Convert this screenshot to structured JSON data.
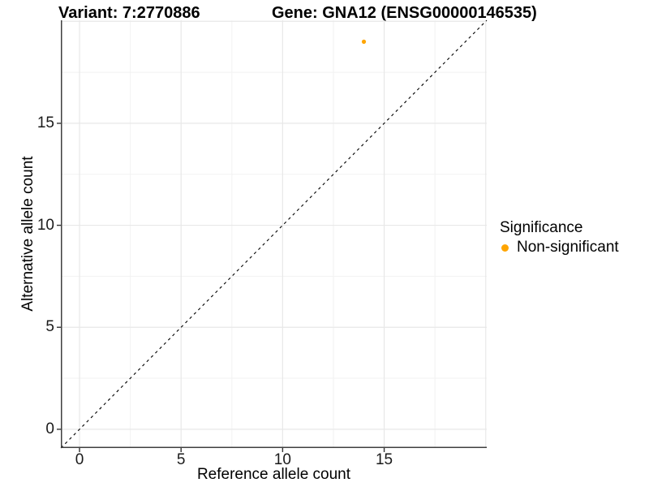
{
  "chart_data": {
    "type": "scatter",
    "title_left": "Variant: 7:2770886",
    "title_right": "Gene: GNA12 (ENSG00000146535)",
    "xlabel": "Reference allele count",
    "ylabel": "Alternative allele count",
    "xlim": [
      -0.92,
      20.05
    ],
    "ylim": [
      -0.92,
      20.05
    ],
    "x_ticks": [
      0,
      5,
      10,
      15
    ],
    "y_ticks": [
      0,
      5,
      10,
      15
    ],
    "grid": {
      "major": [
        0,
        5,
        10,
        15,
        20
      ],
      "minor": [
        2.5,
        7.5,
        12.5,
        17.5
      ]
    },
    "identity_line": {
      "style": "dashed",
      "slope": 1,
      "intercept": 0
    },
    "series": [
      {
        "name": "Non-significant",
        "color": "#FFA500",
        "points": [
          {
            "x": 14,
            "y": 19
          }
        ]
      }
    ],
    "legend": {
      "title": "Significance",
      "position": "right",
      "entries": [
        {
          "label": "Non-significant",
          "color": "#FFA500"
        }
      ]
    },
    "colors": {
      "point": "#FFA500",
      "grid_major": "#e8e8e8",
      "grid_minor": "#f2f2f2",
      "axis_line": "#3f3f3f",
      "tick_mark": "#333333",
      "tick_text": "#1a1a1a",
      "dashed_line": "#000000",
      "background": "#ffffff"
    }
  }
}
